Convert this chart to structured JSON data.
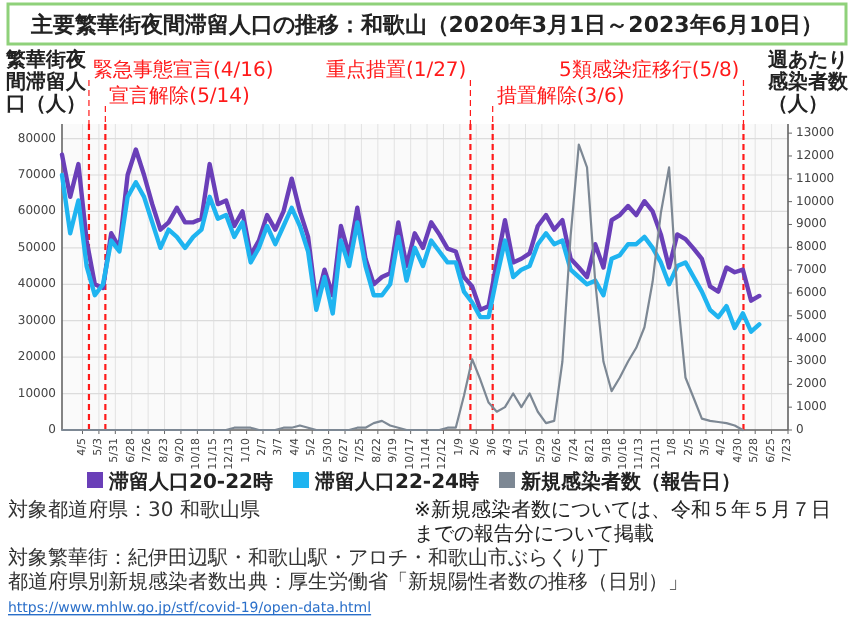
{
  "chart_data": {
    "type": "line",
    "title": "主要繁華街夜間滞留人口の推移：和歌山（2020年3月1日～2023年6月10日）",
    "ylabel": "繁華街夜間滞留人口（人）",
    "y2label": "週あたり感染者数（人）",
    "x": [
      "2020-03-01",
      "2020-03-15",
      "2020-03-29",
      "2020-04-12",
      "2020-04-26",
      "2020-05-10",
      "2020-05-24",
      "2020-06-07",
      "2020-06-21",
      "2020-07-05",
      "2020-07-19",
      "2020-08-02",
      "2020-08-16",
      "2020-08-30",
      "2020-09-13",
      "2020-09-27",
      "2020-10-11",
      "2020-10-25",
      "2020-11-08",
      "2020-11-22",
      "2020-12-06",
      "2020-12-20",
      "2021-01-03",
      "2021-01-17",
      "2021-01-31",
      "2021-02-14",
      "2021-02-28",
      "2021-03-14",
      "2021-03-28",
      "2021-04-11",
      "2021-04-25",
      "2021-05-09",
      "2021-05-23",
      "2021-06-06",
      "2021-06-20",
      "2021-07-04",
      "2021-07-18",
      "2021-08-01",
      "2021-08-15",
      "2021-08-29",
      "2021-09-12",
      "2021-09-26",
      "2021-10-10",
      "2021-10-24",
      "2021-11-07",
      "2021-11-21",
      "2021-12-05",
      "2021-12-19",
      "2022-01-02",
      "2022-01-16",
      "2022-01-30",
      "2022-02-13",
      "2022-02-27",
      "2022-03-13",
      "2022-03-27",
      "2022-04-10",
      "2022-04-24",
      "2022-05-08",
      "2022-05-22",
      "2022-06-05",
      "2022-06-19",
      "2022-07-03",
      "2022-07-17",
      "2022-07-31",
      "2022-08-14",
      "2022-08-28",
      "2022-09-11",
      "2022-09-25",
      "2022-10-09",
      "2022-10-23",
      "2022-11-06",
      "2022-11-20",
      "2022-12-04",
      "2022-12-18",
      "2023-01-01",
      "2023-01-15",
      "2023-01-29",
      "2023-02-12",
      "2023-02-26",
      "2023-03-12",
      "2023-03-26",
      "2023-04-09",
      "2023-04-23",
      "2023-05-07",
      "2023-05-21",
      "2023-06-04"
    ],
    "series": [
      {
        "name": "滞留人口20-22時",
        "color": "#6a3fb8",
        "values": [
          75600,
          64000,
          73000,
          52000,
          40000,
          39000,
          54000,
          50000,
          70000,
          77000,
          70000,
          62000,
          55000,
          57000,
          61000,
          57000,
          57000,
          58000,
          73000,
          62000,
          63000,
          56000,
          60000,
          48000,
          52000,
          59000,
          55000,
          60000,
          69000,
          60000,
          53000,
          35000,
          44000,
          37000,
          56000,
          48000,
          61000,
          47000,
          40000,
          42000,
          43000,
          57000,
          45000,
          54000,
          50000,
          57000,
          53700,
          49800,
          49000,
          42000,
          39400,
          33000,
          34000,
          46000,
          57600,
          46000,
          47000,
          48500,
          56000,
          59000,
          55000,
          57600,
          47000,
          44600,
          42000,
          51000,
          44600,
          57600,
          59000,
          61500,
          59000,
          62800,
          60000,
          53700,
          44600,
          53700,
          52400,
          49800,
          47000,
          39400,
          38000,
          44600,
          43300,
          44000,
          35500,
          36800
        ]
      },
      {
        "name": "滞留人口22-24時",
        "color": "#1fb4f0",
        "values": [
          70000,
          54000,
          63000,
          45000,
          37000,
          40000,
          52000,
          49000,
          64000,
          68000,
          64000,
          57000,
          50000,
          55000,
          53000,
          50000,
          53000,
          55000,
          64000,
          58000,
          59000,
          53000,
          57000,
          46000,
          50000,
          56000,
          51000,
          56000,
          61000,
          56000,
          49000,
          33000,
          42000,
          32000,
          52000,
          45000,
          57000,
          45000,
          37000,
          37000,
          40000,
          53000,
          41000,
          50000,
          45000,
          52000,
          49000,
          46000,
          46000,
          38000,
          35000,
          31000,
          31000,
          42000,
          52000,
          42000,
          44000,
          45000,
          51000,
          54000,
          51000,
          52000,
          44000,
          42000,
          40000,
          41000,
          37000,
          47000,
          48000,
          51000,
          51000,
          53000,
          50000,
          46000,
          40000,
          45000,
          46000,
          42000,
          38000,
          33000,
          31000,
          34000,
          28000,
          32000,
          27000,
          29000
        ]
      },
      {
        "name": "新規感染者数（報告日）",
        "color": "#7d8894",
        "axis": "y2",
        "values": [
          0,
          0,
          0,
          0,
          0,
          0,
          0,
          0,
          0,
          0,
          0,
          0,
          0,
          0,
          0,
          0,
          0,
          0,
          0,
          0,
          0,
          100,
          100,
          100,
          0,
          0,
          0,
          100,
          100,
          200,
          100,
          0,
          0,
          0,
          0,
          0,
          100,
          100,
          300,
          400,
          200,
          100,
          0,
          0,
          0,
          0,
          0,
          100,
          100,
          1500,
          3100,
          2200,
          1200,
          800,
          1000,
          1600,
          1000,
          1600,
          800,
          300,
          400,
          3000,
          8500,
          12500,
          11500,
          6500,
          3000,
          1700,
          2300,
          3000,
          3600,
          4500,
          6500,
          9500,
          11500,
          6000,
          2300,
          1400,
          500,
          400,
          350,
          300,
          200,
          0,
          null,
          null
        ]
      }
    ],
    "xlim": [
      "2020-03-01",
      "2023-07-23"
    ],
    "xticks": [
      {
        "value": "2020-04-05",
        "label": "4/5"
      },
      {
        "value": "2020-05-03",
        "label": "5/3"
      },
      {
        "value": "2020-05-31",
        "label": "5/31"
      },
      {
        "value": "2020-06-28",
        "label": "6/28"
      },
      {
        "value": "2020-07-26",
        "label": "7/26"
      },
      {
        "value": "2020-08-23",
        "label": "8/23"
      },
      {
        "value": "2020-09-20",
        "label": "9/20"
      },
      {
        "value": "2020-10-18",
        "label": "10/18"
      },
      {
        "value": "2020-11-15",
        "label": "11/15"
      },
      {
        "value": "2020-12-13",
        "label": "12/13"
      },
      {
        "value": "2021-01-10",
        "label": "1/10"
      },
      {
        "value": "2021-02-07",
        "label": "2/7"
      },
      {
        "value": "2021-03-07",
        "label": "3/7"
      },
      {
        "value": "2021-04-04",
        "label": "4/4"
      },
      {
        "value": "2021-05-02",
        "label": "5/2"
      },
      {
        "value": "2021-05-30",
        "label": "5/30"
      },
      {
        "value": "2021-06-27",
        "label": "6/27"
      },
      {
        "value": "2021-07-25",
        "label": "7/25"
      },
      {
        "value": "2021-08-22",
        "label": "8/22"
      },
      {
        "value": "2021-09-19",
        "label": "9/19"
      },
      {
        "value": "2021-10-17",
        "label": "10/17"
      },
      {
        "value": "2021-11-14",
        "label": "11/14"
      },
      {
        "value": "2021-12-12",
        "label": "12/12"
      },
      {
        "value": "2022-01-09",
        "label": "1/9"
      },
      {
        "value": "2022-02-06",
        "label": "2/6"
      },
      {
        "value": "2022-03-06",
        "label": "3/6"
      },
      {
        "value": "2022-04-03",
        "label": "4/3"
      },
      {
        "value": "2022-05-01",
        "label": "5/1"
      },
      {
        "value": "2022-05-29",
        "label": "5/29"
      },
      {
        "value": "2022-06-26",
        "label": "6/26"
      },
      {
        "value": "2022-07-24",
        "label": "7/24"
      },
      {
        "value": "2022-08-21",
        "label": "8/21"
      },
      {
        "value": "2022-09-18",
        "label": "9/18"
      },
      {
        "value": "2022-10-16",
        "label": "10/16"
      },
      {
        "value": "2022-11-13",
        "label": "11/13"
      },
      {
        "value": "2022-12-11",
        "label": "12/11"
      },
      {
        "value": "2023-01-08",
        "label": "1/8"
      },
      {
        "value": "2023-02-05",
        "label": "2/5"
      },
      {
        "value": "2023-03-05",
        "label": "3/5"
      },
      {
        "value": "2023-04-02",
        "label": "4/2"
      },
      {
        "value": "2023-04-30",
        "label": "4/30"
      },
      {
        "value": "2023-05-28",
        "label": "5/28"
      },
      {
        "value": "2023-06-25",
        "label": "6/25"
      },
      {
        "value": "2023-07-23",
        "label": "7/23"
      }
    ],
    "ylim": [
      0,
      84000
    ],
    "yticks": [
      0,
      10000,
      20000,
      30000,
      40000,
      50000,
      60000,
      70000,
      80000
    ],
    "y2lim": [
      0,
      13400
    ],
    "y2ticks": [
      0,
      1000,
      2000,
      3000,
      4000,
      5000,
      6000,
      7000,
      8000,
      9000,
      10000,
      11000,
      12000,
      13000
    ],
    "grid": true,
    "legend": "bottom",
    "ref_lines": [
      {
        "axis": "x",
        "value": "2020-04-16",
        "label": "緊急事態宣言(4/16)",
        "color": "#ff1a1a",
        "line_style": "dashed"
      },
      {
        "axis": "x",
        "value": "2020-05-14",
        "label": "宣言解除(5/14)",
        "color": "#ff1a1a",
        "line_style": "dashed"
      },
      {
        "axis": "x",
        "value": "2022-01-27",
        "label": "重点措置(1/27)",
        "color": "#ff1a1a",
        "line_style": "dashed"
      },
      {
        "axis": "x",
        "value": "2022-03-06",
        "label": "措置解除(3/6)",
        "color": "#ff1a1a",
        "line_style": "dashed"
      },
      {
        "axis": "x",
        "value": "2023-05-08",
        "label": "5類感染症移行(5/8)",
        "color": "#ff1a1a",
        "line_style": "dashed"
      }
    ],
    "annotations": [
      "対象都道府県：30 和歌山県",
      "対象繁華街：紀伊田辺駅・和歌山駅・アロチ・和歌山市ぶらくり丁",
      "都道府県別新規感染者数出典：厚生労働省「新規陽性者数の推移（日別）」",
      "https://www.mhlw.go.jp/stf/covid-19/open-data.html",
      "※新規感染者数については、令和５年５月７日までの報告分について掲載"
    ]
  }
}
